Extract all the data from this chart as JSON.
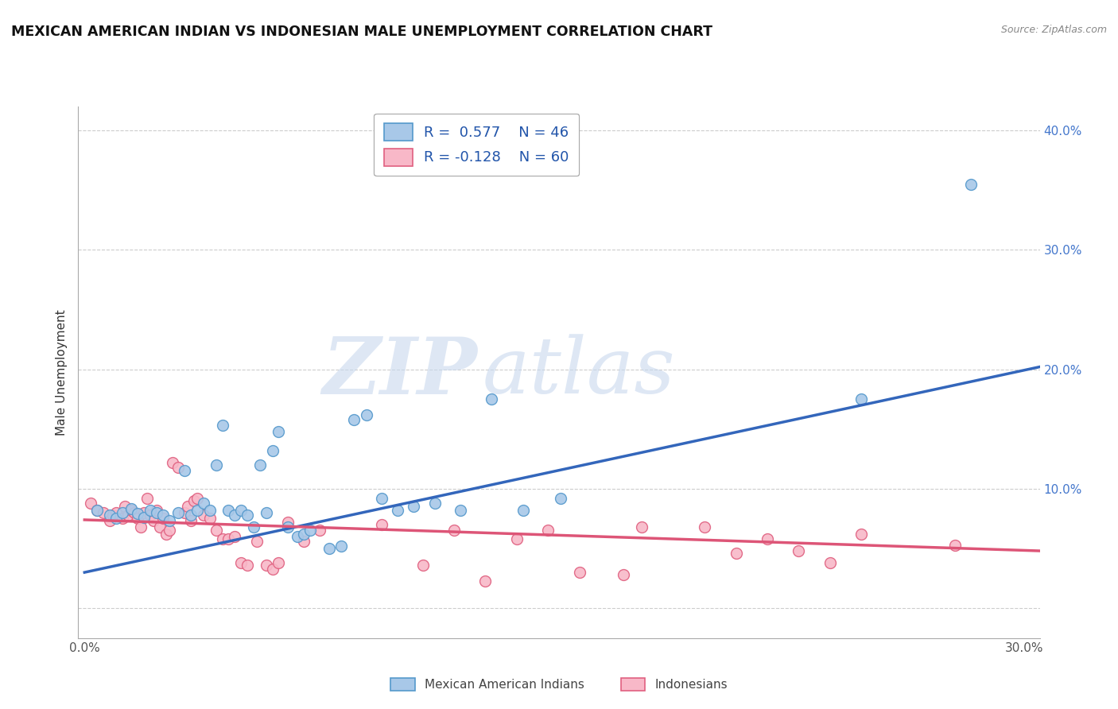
{
  "title": "MEXICAN AMERICAN INDIAN VS INDONESIAN MALE UNEMPLOYMENT CORRELATION CHART",
  "source": "Source: ZipAtlas.com",
  "ylabel": "Male Unemployment",
  "xlim": [
    -0.002,
    0.305
  ],
  "ylim": [
    -0.025,
    0.42
  ],
  "background_color": "#ffffff",
  "grid_color": "#cccccc",
  "watermark_zip": "ZIP",
  "watermark_atlas": "atlas",
  "legend_line1_r": "R =  0.577",
  "legend_line1_n": "N = 46",
  "legend_line2_r": "R = -0.128",
  "legend_line2_n": "N = 60",
  "legend_label1": "Mexican American Indians",
  "legend_label2": "Indonesians",
  "blue_fill": "#a8c8e8",
  "blue_edge": "#5599cc",
  "pink_fill": "#f8b8c8",
  "pink_edge": "#e06080",
  "blue_line_color": "#3366bb",
  "pink_line_color": "#dd5577",
  "blue_scatter": [
    [
      0.004,
      0.082
    ],
    [
      0.008,
      0.078
    ],
    [
      0.01,
      0.075
    ],
    [
      0.012,
      0.08
    ],
    [
      0.015,
      0.083
    ],
    [
      0.017,
      0.079
    ],
    [
      0.019,
      0.076
    ],
    [
      0.021,
      0.082
    ],
    [
      0.023,
      0.08
    ],
    [
      0.025,
      0.078
    ],
    [
      0.027,
      0.073
    ],
    [
      0.03,
      0.08
    ],
    [
      0.032,
      0.115
    ],
    [
      0.034,
      0.078
    ],
    [
      0.036,
      0.082
    ],
    [
      0.038,
      0.088
    ],
    [
      0.04,
      0.082
    ],
    [
      0.042,
      0.12
    ],
    [
      0.044,
      0.153
    ],
    [
      0.046,
      0.082
    ],
    [
      0.048,
      0.078
    ],
    [
      0.05,
      0.082
    ],
    [
      0.052,
      0.078
    ],
    [
      0.054,
      0.068
    ],
    [
      0.056,
      0.12
    ],
    [
      0.058,
      0.08
    ],
    [
      0.06,
      0.132
    ],
    [
      0.062,
      0.148
    ],
    [
      0.065,
      0.068
    ],
    [
      0.068,
      0.06
    ],
    [
      0.07,
      0.062
    ],
    [
      0.072,
      0.065
    ],
    [
      0.078,
      0.05
    ],
    [
      0.082,
      0.052
    ],
    [
      0.086,
      0.158
    ],
    [
      0.09,
      0.162
    ],
    [
      0.095,
      0.092
    ],
    [
      0.1,
      0.082
    ],
    [
      0.105,
      0.085
    ],
    [
      0.112,
      0.088
    ],
    [
      0.12,
      0.082
    ],
    [
      0.13,
      0.175
    ],
    [
      0.14,
      0.082
    ],
    [
      0.152,
      0.092
    ],
    [
      0.248,
      0.175
    ],
    [
      0.283,
      0.355
    ]
  ],
  "pink_scatter": [
    [
      0.002,
      0.088
    ],
    [
      0.004,
      0.082
    ],
    [
      0.006,
      0.08
    ],
    [
      0.008,
      0.073
    ],
    [
      0.009,
      0.078
    ],
    [
      0.01,
      0.08
    ],
    [
      0.012,
      0.075
    ],
    [
      0.013,
      0.085
    ],
    [
      0.014,
      0.078
    ],
    [
      0.015,
      0.082
    ],
    [
      0.016,
      0.08
    ],
    [
      0.017,
      0.075
    ],
    [
      0.018,
      0.068
    ],
    [
      0.019,
      0.08
    ],
    [
      0.02,
      0.092
    ],
    [
      0.021,
      0.078
    ],
    [
      0.022,
      0.073
    ],
    [
      0.023,
      0.082
    ],
    [
      0.024,
      0.068
    ],
    [
      0.025,
      0.075
    ],
    [
      0.026,
      0.062
    ],
    [
      0.027,
      0.065
    ],
    [
      0.028,
      0.122
    ],
    [
      0.03,
      0.118
    ],
    [
      0.032,
      0.08
    ],
    [
      0.033,
      0.085
    ],
    [
      0.034,
      0.073
    ],
    [
      0.035,
      0.09
    ],
    [
      0.036,
      0.092
    ],
    [
      0.038,
      0.078
    ],
    [
      0.04,
      0.075
    ],
    [
      0.042,
      0.065
    ],
    [
      0.044,
      0.058
    ],
    [
      0.046,
      0.058
    ],
    [
      0.048,
      0.06
    ],
    [
      0.05,
      0.038
    ],
    [
      0.052,
      0.036
    ],
    [
      0.055,
      0.056
    ],
    [
      0.058,
      0.036
    ],
    [
      0.06,
      0.033
    ],
    [
      0.062,
      0.038
    ],
    [
      0.065,
      0.072
    ],
    [
      0.07,
      0.056
    ],
    [
      0.075,
      0.065
    ],
    [
      0.095,
      0.07
    ],
    [
      0.108,
      0.036
    ],
    [
      0.118,
      0.065
    ],
    [
      0.128,
      0.023
    ],
    [
      0.138,
      0.058
    ],
    [
      0.148,
      0.065
    ],
    [
      0.158,
      0.03
    ],
    [
      0.172,
      0.028
    ],
    [
      0.178,
      0.068
    ],
    [
      0.198,
      0.068
    ],
    [
      0.208,
      0.046
    ],
    [
      0.218,
      0.058
    ],
    [
      0.228,
      0.048
    ],
    [
      0.238,
      0.038
    ],
    [
      0.248,
      0.062
    ],
    [
      0.278,
      0.053
    ]
  ],
  "blue_line_x": [
    0.0,
    0.305
  ],
  "blue_line_y": [
    0.03,
    0.202
  ],
  "pink_line_x": [
    0.0,
    0.305
  ],
  "pink_line_y": [
    0.074,
    0.048
  ]
}
